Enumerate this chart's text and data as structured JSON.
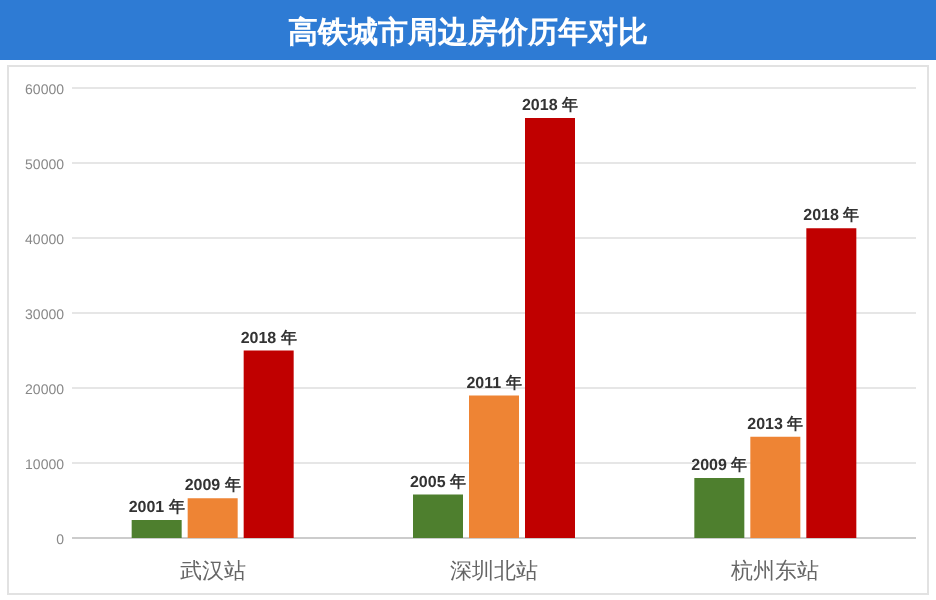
{
  "chart_data": {
    "type": "bar",
    "title": "高铁城市周边房价历年对比",
    "categories": [
      "武汉站",
      "深圳北站",
      "杭州东站"
    ],
    "series": [
      {
        "color": "#4e7f2e",
        "values": [
          2400,
          5800,
          8000
        ]
      },
      {
        "color": "#ee8434",
        "values": [
          5300,
          19000,
          13500
        ]
      },
      {
        "color": "#c00000",
        "values": [
          25000,
          56000,
          41300
        ]
      }
    ],
    "annotations": [
      "2001 年",
      "2009 年",
      "2018 年",
      "2005 年",
      "2011 年",
      "2018 年",
      "2009 年",
      "2013 年",
      "2018 年"
    ],
    "ylim": [
      0,
      60000
    ],
    "yticks": [
      0,
      10000,
      20000,
      30000,
      40000,
      50000,
      60000
    ],
    "grid": "y"
  }
}
